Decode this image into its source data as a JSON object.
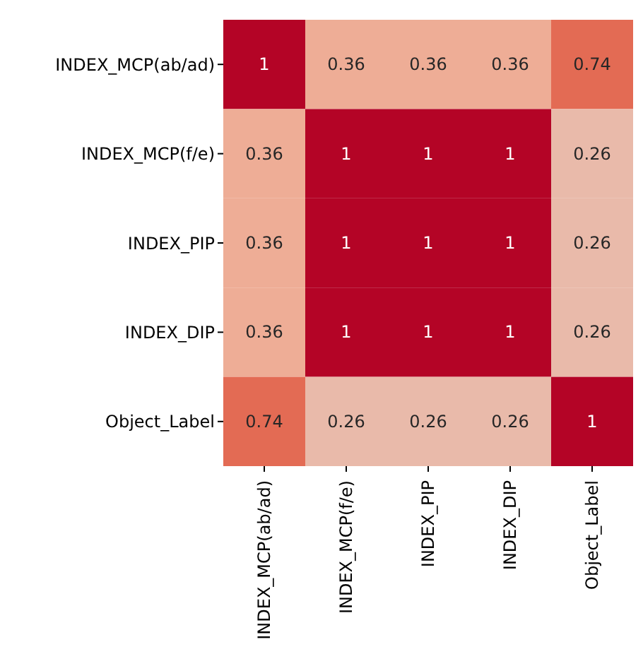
{
  "chart_data": {
    "type": "heatmap",
    "categories": [
      "INDEX_MCP(ab/ad)",
      "INDEX_MCP(f/e)",
      "INDEX_PIP",
      "INDEX_DIP",
      "Object_Label"
    ],
    "y_categories": [
      "INDEX_MCP(ab/ad)",
      "INDEX_MCP(f/e)",
      "INDEX_PIP",
      "INDEX_DIP",
      "Object_Label"
    ],
    "cells": [
      [
        1,
        0.36,
        0.36,
        0.36,
        0.74
      ],
      [
        0.36,
        1,
        1,
        1,
        0.26
      ],
      [
        0.36,
        1,
        1,
        1,
        0.26
      ],
      [
        0.36,
        1,
        1,
        1,
        0.26
      ],
      [
        0.74,
        0.26,
        0.26,
        0.26,
        1
      ]
    ],
    "data_labels": true
  }
}
